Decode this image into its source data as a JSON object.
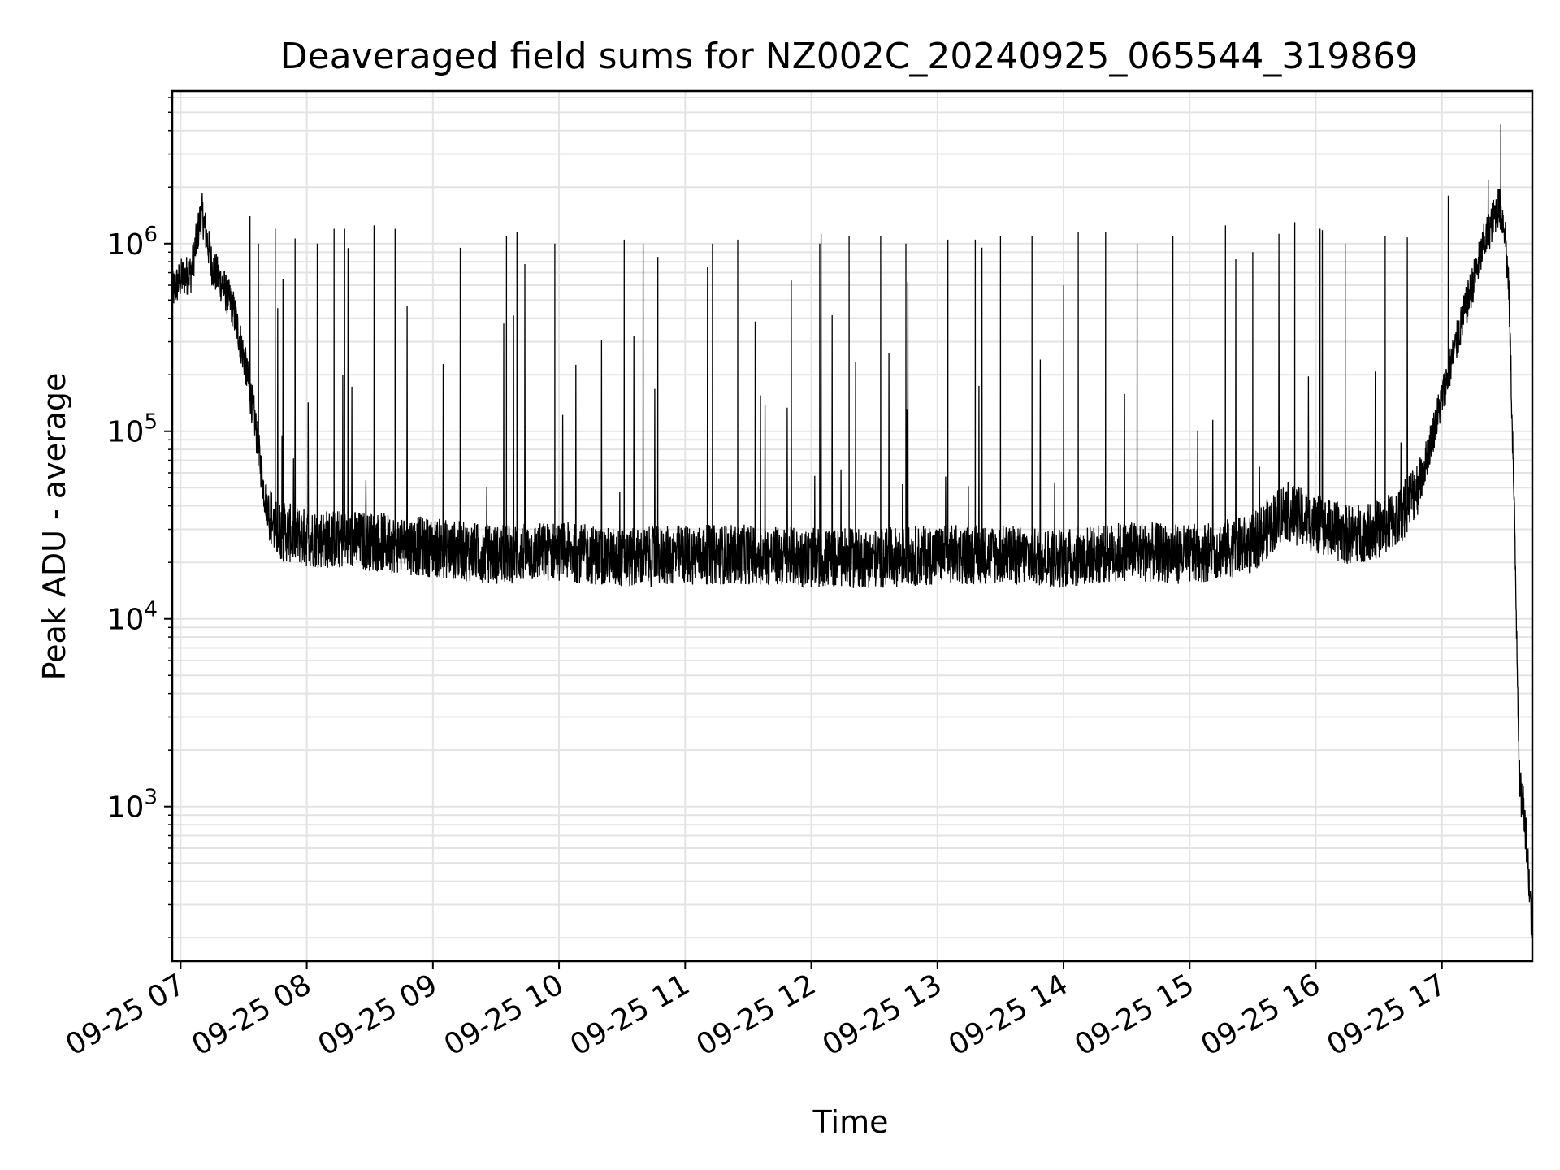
{
  "chart_data": {
    "type": "line",
    "title": "Deaveraged field sums for NZ002C_20240925_065544_319869",
    "xlabel": "Time",
    "ylabel": "Peak ADU - average",
    "yscale": "log",
    "ylim": [
      150,
      6500000
    ],
    "xlim": [
      "2024-09-25 06:56",
      "2024-09-25 17:43"
    ],
    "grid": true,
    "line_color": "#000000",
    "x_ticks": [
      "09-25 07",
      "09-25 08",
      "09-25 09",
      "09-25 10",
      "09-25 11",
      "09-25 12",
      "09-25 13",
      "09-25 14",
      "09-25 15",
      "09-25 16",
      "09-25 17"
    ],
    "y_ticks": [
      {
        "base": "10",
        "exp": "3",
        "value": 1000
      },
      {
        "base": "10",
        "exp": "4",
        "value": 10000
      },
      {
        "base": "10",
        "exp": "5",
        "value": 100000
      },
      {
        "base": "10",
        "exp": "6",
        "value": 1000000
      }
    ],
    "series": [
      {
        "values": [
          [
            "2024-09-25 06:56",
            550000
          ],
          [
            "2024-09-25 07:00",
            650000
          ],
          [
            "2024-09-25 07:05",
            700000
          ],
          [
            "2024-09-25 07:10",
            1500000
          ],
          [
            "2024-09-25 07:15",
            750000
          ],
          [
            "2024-09-25 07:20",
            600000
          ],
          [
            "2024-09-25 07:25",
            450000
          ],
          [
            "2024-09-25 07:30",
            250000
          ],
          [
            "2024-09-25 07:35",
            120000
          ],
          [
            "2024-09-25 07:40",
            45000
          ],
          [
            "2024-09-25 07:45",
            30000
          ],
          [
            "2024-09-25 08:00",
            27000
          ],
          [
            "2024-09-25 08:30",
            26000
          ],
          [
            "2024-09-25 09:00",
            24000
          ],
          [
            "2024-09-25 09:30",
            22000
          ],
          [
            "2024-09-25 10:00",
            23000
          ],
          [
            "2024-09-25 10:30",
            21000
          ],
          [
            "2024-09-25 11:00",
            22000
          ],
          [
            "2024-09-25 11:30",
            22000
          ],
          [
            "2024-09-25 12:00",
            21000
          ],
          [
            "2024-09-25 12:30",
            21000
          ],
          [
            "2024-09-25 13:00",
            22000
          ],
          [
            "2024-09-25 13:30",
            22000
          ],
          [
            "2024-09-25 14:00",
            21000
          ],
          [
            "2024-09-25 14:30",
            23000
          ],
          [
            "2024-09-25 15:00",
            22000
          ],
          [
            "2024-09-25 15:30",
            25000
          ],
          [
            "2024-09-25 15:45",
            38000
          ],
          [
            "2024-09-25 16:00",
            32000
          ],
          [
            "2024-09-25 16:15",
            28000
          ],
          [
            "2024-09-25 16:30",
            30000
          ],
          [
            "2024-09-25 16:40",
            35000
          ],
          [
            "2024-09-25 16:50",
            55000
          ],
          [
            "2024-09-25 17:00",
            150000
          ],
          [
            "2024-09-25 17:10",
            400000
          ],
          [
            "2024-09-25 17:20",
            1000000
          ],
          [
            "2024-09-25 17:27",
            1600000
          ],
          [
            "2024-09-25 17:30",
            1200000
          ],
          [
            "2024-09-25 17:32",
            500000
          ],
          [
            "2024-09-25 17:34",
            60000
          ],
          [
            "2024-09-25 17:36",
            5000
          ],
          [
            "2024-09-25 17:37",
            1200
          ],
          [
            "2024-09-25 17:39",
            1000
          ],
          [
            "2024-09-25 17:41",
            500
          ],
          [
            "2024-09-25 17:43",
            200
          ]
        ],
        "spikes": [
          [
            "2024-09-25 07:10",
            1700000
          ],
          [
            "2024-09-25 07:33",
            1400000
          ],
          [
            "2024-09-25 07:37",
            1000000
          ],
          [
            "2024-09-25 07:45",
            1200000
          ],
          [
            "2024-09-25 08:05",
            1000000
          ],
          [
            "2024-09-25 08:13",
            1200000
          ],
          [
            "2024-09-25 08:18",
            1200000
          ],
          [
            "2024-09-25 08:32",
            1250000
          ],
          [
            "2024-09-25 08:42",
            1200000
          ],
          [
            "2024-09-25 09:13",
            950000
          ],
          [
            "2024-09-25 09:35",
            1100000
          ],
          [
            "2024-09-25 09:40",
            1150000
          ],
          [
            "2024-09-25 09:58",
            1000000
          ],
          [
            "2024-09-25 10:31",
            1050000
          ],
          [
            "2024-09-25 10:40",
            1000000
          ],
          [
            "2024-09-25 10:47",
            850000
          ],
          [
            "2024-09-25 11:13",
            1000000
          ],
          [
            "2024-09-25 11:25",
            1050000
          ],
          [
            "2024-09-25 12:04",
            1000000
          ],
          [
            "2024-09-25 12:18",
            1100000
          ],
          [
            "2024-09-25 12:33",
            1100000
          ],
          [
            "2024-09-25 12:45",
            1000000
          ],
          [
            "2024-09-25 13:05",
            1050000
          ],
          [
            "2024-09-25 13:18",
            1050000
          ],
          [
            "2024-09-25 13:30",
            1100000
          ],
          [
            "2024-09-25 13:45",
            1100000
          ],
          [
            "2024-09-25 14:07",
            1150000
          ],
          [
            "2024-09-25 14:20",
            1150000
          ],
          [
            "2024-09-25 14:35",
            1000000
          ],
          [
            "2024-09-25 14:52",
            1100000
          ],
          [
            "2024-09-25 15:17",
            1250000
          ],
          [
            "2024-09-25 15:30",
            900000
          ],
          [
            "2024-09-25 15:50",
            1300000
          ],
          [
            "2024-09-25 16:02",
            1200000
          ],
          [
            "2024-09-25 16:14",
            1000000
          ],
          [
            "2024-09-25 16:33",
            1100000
          ],
          [
            "2024-09-25 17:03",
            1800000
          ],
          [
            "2024-09-25 17:22",
            2200000
          ],
          [
            "2024-09-25 17:28",
            4300000
          ]
        ]
      }
    ]
  }
}
